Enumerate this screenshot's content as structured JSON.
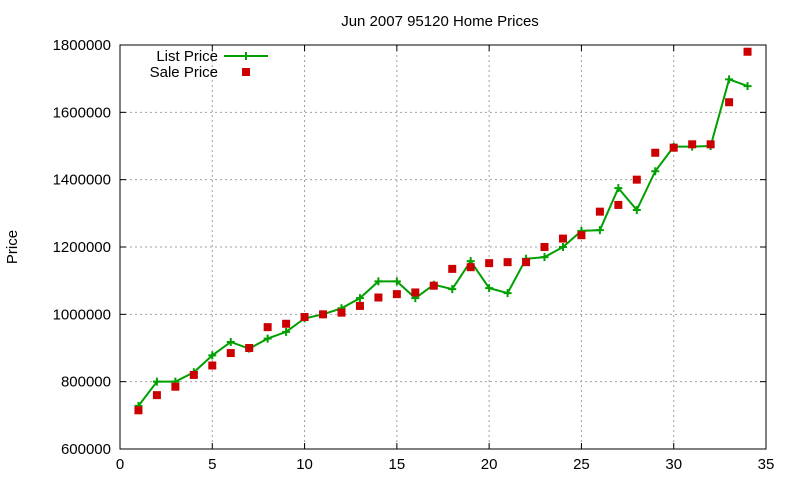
{
  "chart_data": {
    "type": "line",
    "title": "Jun 2007 95120 Home Prices",
    "xlabel": "",
    "ylabel": "Price",
    "xlim": [
      0,
      35
    ],
    "ylim": [
      600000,
      1800000
    ],
    "xticks": [
      0,
      5,
      10,
      15,
      20,
      25,
      30,
      35
    ],
    "yticks": [
      600000,
      800000,
      1000000,
      1200000,
      1400000,
      1600000,
      1800000
    ],
    "grid": true,
    "legend_position": "top-left",
    "series": [
      {
        "name": "List Price",
        "style": "line+plus",
        "color": "#00a000",
        "x": [
          1,
          2,
          3,
          4,
          5,
          6,
          7,
          8,
          9,
          10,
          11,
          12,
          13,
          14,
          15,
          16,
          17,
          18,
          19,
          20,
          21,
          22,
          23,
          24,
          25,
          26,
          27,
          28,
          29,
          30,
          31,
          32,
          33,
          34
        ],
        "values": [
          728000,
          800000,
          800000,
          828000,
          878000,
          918000,
          898000,
          928000,
          948000,
          988000,
          1000000,
          1018000,
          1048000,
          1098000,
          1098000,
          1048000,
          1088000,
          1075000,
          1158000,
          1078000,
          1063000,
          1165000,
          1170000,
          1200000,
          1248000,
          1250000,
          1375000,
          1310000,
          1425000,
          1498000,
          1498000,
          1500000,
          1698000,
          1678000
        ]
      },
      {
        "name": "Sale Price",
        "style": "square",
        "color": "#cc0000",
        "x": [
          1,
          2,
          3,
          4,
          5,
          6,
          7,
          8,
          9,
          10,
          11,
          12,
          13,
          14,
          15,
          16,
          17,
          18,
          19,
          20,
          21,
          22,
          23,
          24,
          25,
          26,
          27,
          28,
          29,
          30,
          31,
          32,
          33,
          34
        ],
        "values": [
          715000,
          760000,
          785000,
          820000,
          848000,
          885000,
          900000,
          962000,
          972000,
          992000,
          1000000,
          1005000,
          1025000,
          1050000,
          1060000,
          1065000,
          1085000,
          1135000,
          1140000,
          1152000,
          1155000,
          1155000,
          1200000,
          1225000,
          1235000,
          1305000,
          1325000,
          1400000,
          1480000,
          1495000,
          1505000,
          1505000,
          1630000,
          1780000
        ]
      }
    ]
  }
}
